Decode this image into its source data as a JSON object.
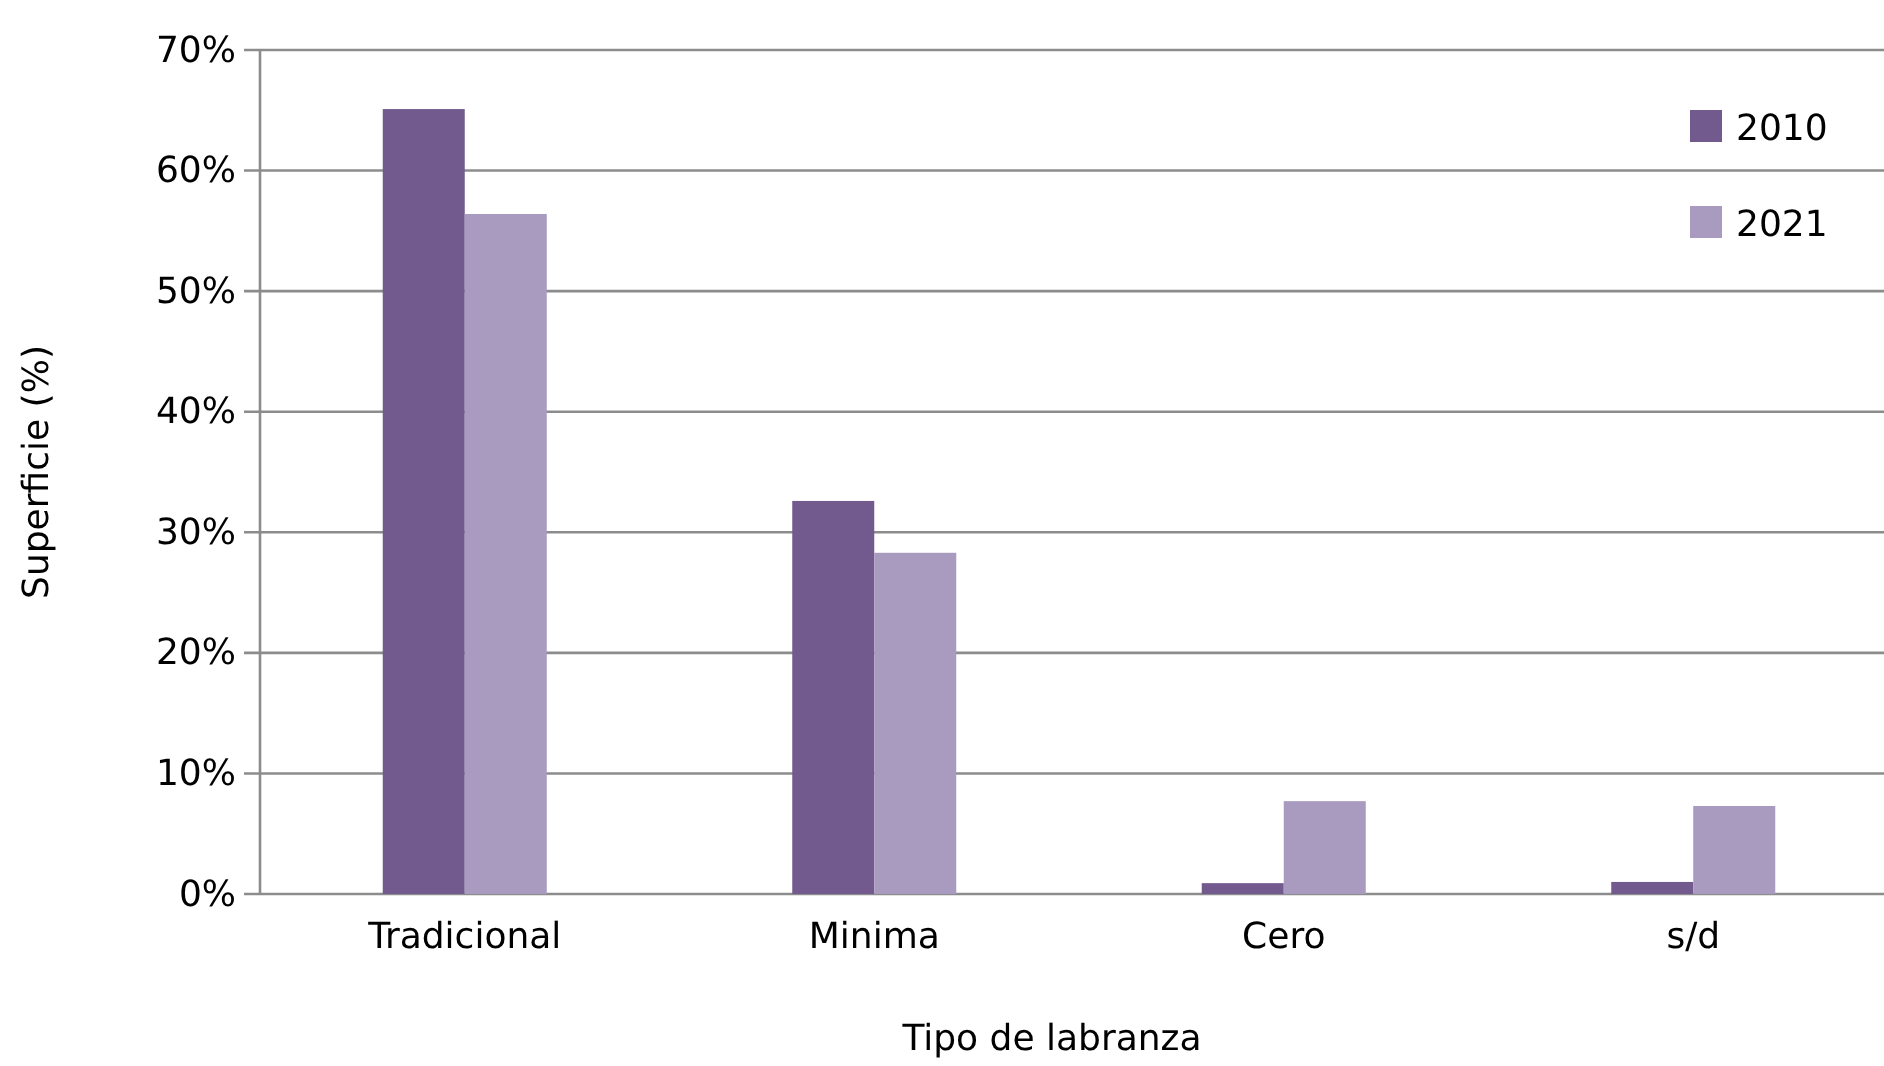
{
  "chart_data": {
    "type": "bar",
    "xlabel": "Tipo de labranza",
    "ylabel": "Superficie (%)",
    "categories": [
      "Tradicional",
      "Minima",
      "Cero",
      "s/d"
    ],
    "series": [
      {
        "name": "2010",
        "color": "#725a8f",
        "values": [
          65.1,
          32.6,
          0.9,
          1.0
        ]
      },
      {
        "name": "2021",
        "color": "#a99bbf",
        "values": [
          56.4,
          28.3,
          7.7,
          7.3
        ]
      }
    ],
    "ylim": [
      0,
      70
    ],
    "yticks": [
      {
        "value": 0,
        "label": "0%"
      },
      {
        "value": 10,
        "label": "10%"
      },
      {
        "value": 20,
        "label": "20%"
      },
      {
        "value": 30,
        "label": "30%"
      },
      {
        "value": 40,
        "label": "40%"
      },
      {
        "value": 50,
        "label": "50%"
      },
      {
        "value": 60,
        "label": "60%"
      },
      {
        "value": 70,
        "label": "70%"
      }
    ],
    "grid": "y",
    "legend": "top right"
  }
}
